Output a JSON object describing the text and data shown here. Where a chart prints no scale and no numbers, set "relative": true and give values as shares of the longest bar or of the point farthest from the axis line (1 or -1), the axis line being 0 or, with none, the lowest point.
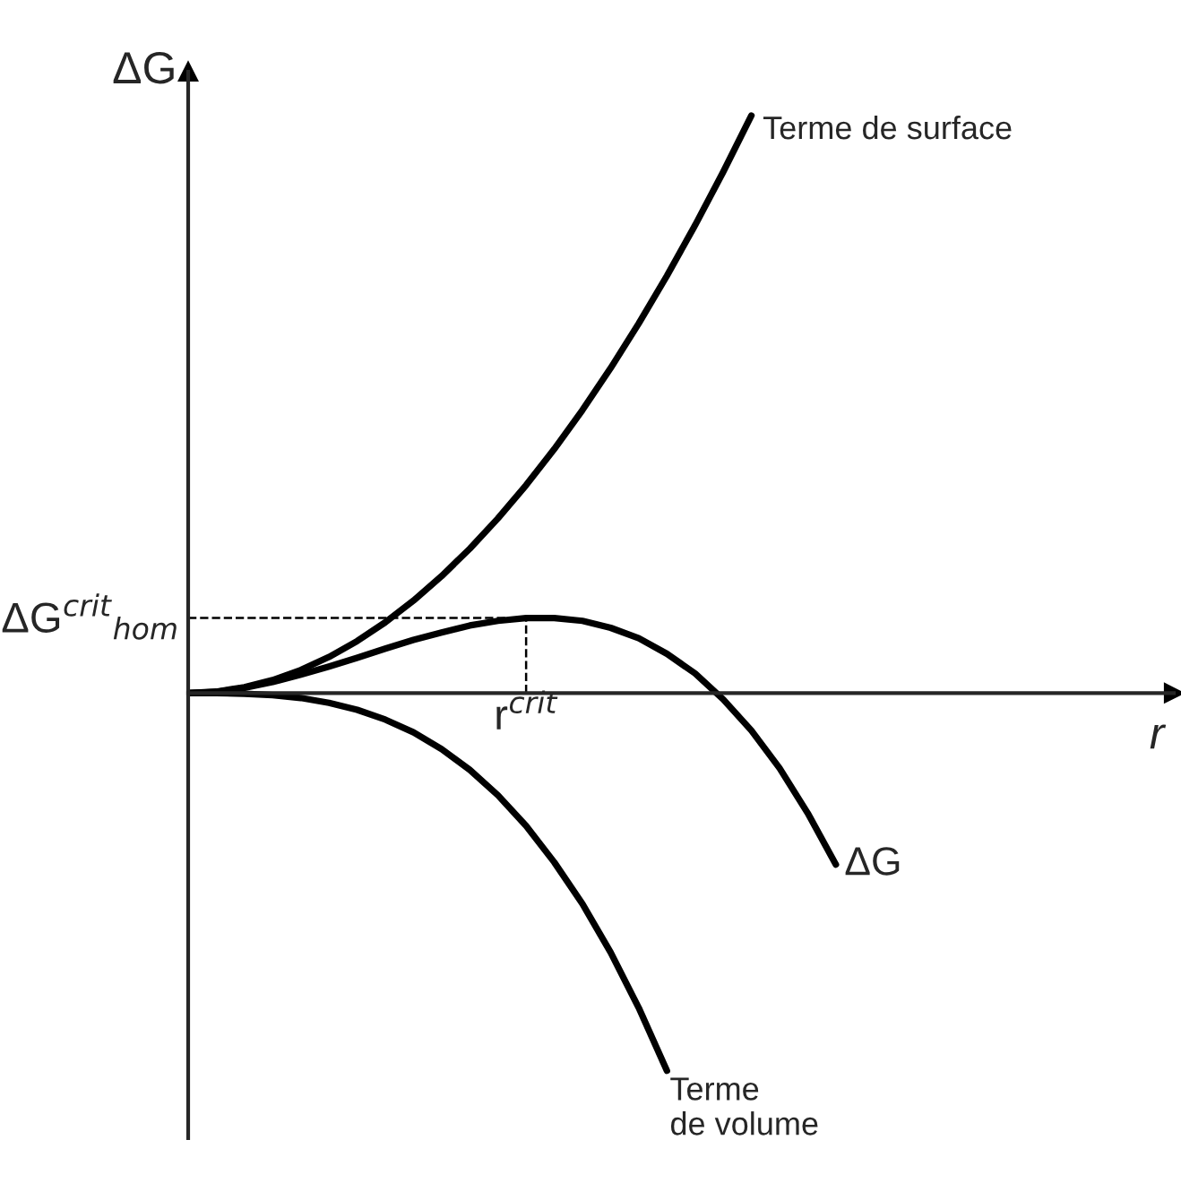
{
  "chart_data": {
    "type": "line",
    "relative": true,
    "xlabel": "r",
    "ylabel": "ΔG",
    "categories": [
      null,
      null,
      null,
      null,
      null,
      null,
      null,
      null,
      null,
      null,
      null,
      null,
      null,
      null,
      null,
      null,
      null,
      null,
      null,
      null,
      null,
      null,
      null,
      null,
      null,
      null,
      null,
      null,
      null,
      null,
      null,
      null,
      null,
      null,
      null,
      null
    ],
    "series": [
      {
        "name": "Terme de surface",
        "color": "#000000",
        "values": [
          0,
          0.0025,
          0.01,
          0.0225,
          0.04,
          0.0625,
          0.09,
          0.1225,
          0.16,
          0.2025,
          0.25,
          0.3025,
          0.36,
          0.4225,
          0.49,
          0.5625,
          0.64,
          0.7225,
          0.81,
          0.9025,
          1,
          null,
          null,
          null,
          null,
          null,
          null,
          null,
          null,
          null,
          null,
          null,
          null,
          null,
          null,
          null
        ]
      },
      {
        "name": "ΔG",
        "color": "#000000",
        "values": [
          0,
          0.002,
          0.009,
          0.019,
          0.032,
          0.046,
          0.061,
          0.077,
          0.092,
          0.105,
          0.117,
          0.125,
          0.13,
          0.13,
          0.125,
          0.113,
          0.095,
          0.068,
          0.034,
          -0.011,
          -0.065,
          -0.13,
          -0.208,
          -0.297,
          null,
          null,
          null,
          null,
          null,
          null,
          null,
          null,
          null,
          null,
          null,
          null
        ]
      },
      {
        "name": "Terme de volume",
        "color": "#000000",
        "values": [
          0,
          -0.0001,
          -0.0011,
          -0.0036,
          -0.0085,
          -0.017,
          -0.029,
          -0.046,
          -0.068,
          -0.097,
          -0.133,
          -0.177,
          -0.23,
          -0.293,
          -0.365,
          -0.449,
          -0.545,
          -0.654,
          null,
          null,
          null,
          null,
          null,
          null,
          null,
          null,
          null,
          null,
          null,
          null,
          null,
          null,
          null,
          null,
          null,
          null
        ]
      }
    ],
    "ref_lines": [
      {
        "axis": "y",
        "value": 0.13,
        "label": "ΔG$^{crit}$$_{hom}$",
        "line_style": "dashed"
      }
    ],
    "annotations": [
      "r$^{crit}$"
    ],
    "legend": false,
    "tick_labels": false,
    "marker": "none",
    "line_style": "solid"
  }
}
